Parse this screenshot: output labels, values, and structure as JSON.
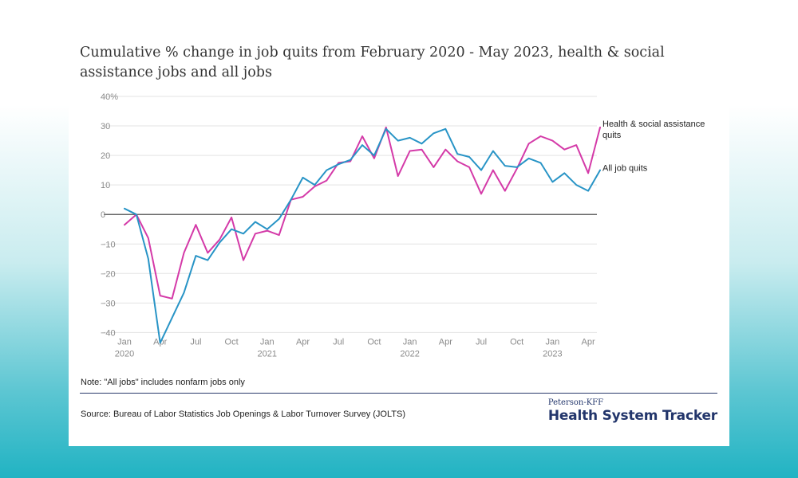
{
  "title": "Cumulative % change in job quits from February 2020 - May 2023, health & social assistance jobs and all jobs",
  "note": "Note: \"All jobs\" includes nonfarm jobs only",
  "source": "Source: Bureau of Labor Statistics Job Openings & Labor Turnover Survey (JOLTS)",
  "brand": {
    "small": "Peterson-KFF",
    "big": "Health System Tracker"
  },
  "colors": {
    "health": "#d43aa8",
    "all": "#2894c6",
    "zero": "#333333",
    "grid": "#e3e3e3",
    "tick": "#8a8a8a"
  },
  "chart_data": {
    "type": "line",
    "title": "Cumulative % change in job quits from February 2020 - May 2023, health & social assistance jobs and all jobs",
    "xlabel": "",
    "ylabel": "",
    "ylim": [
      -40,
      40
    ],
    "yticks": [
      -40,
      -30,
      -20,
      -10,
      0,
      10,
      20,
      30,
      40
    ],
    "ytick_labels": [
      "−40",
      "−30",
      "−20",
      "−10",
      "0",
      "10",
      "20",
      "30",
      "40%"
    ],
    "grid": true,
    "x": [
      "2020-01",
      "2020-02",
      "2020-03",
      "2020-04",
      "2020-05",
      "2020-06",
      "2020-07",
      "2020-08",
      "2020-09",
      "2020-10",
      "2020-11",
      "2020-12",
      "2021-01",
      "2021-02",
      "2021-03",
      "2021-04",
      "2021-05",
      "2021-06",
      "2021-07",
      "2021-08",
      "2021-09",
      "2021-10",
      "2021-11",
      "2021-12",
      "2022-01",
      "2022-02",
      "2022-03",
      "2022-04",
      "2022-05",
      "2022-06",
      "2022-07",
      "2022-08",
      "2022-09",
      "2022-10",
      "2022-11",
      "2022-12",
      "2023-01",
      "2023-02",
      "2023-03",
      "2023-04",
      "2023-05"
    ],
    "xticks": [
      {
        "index": 0,
        "label": "Jan",
        "sub": "2020"
      },
      {
        "index": 3,
        "label": "Apr",
        "sub": ""
      },
      {
        "index": 6,
        "label": "Jul",
        "sub": ""
      },
      {
        "index": 9,
        "label": "Oct",
        "sub": ""
      },
      {
        "index": 12,
        "label": "Jan",
        "sub": "2021"
      },
      {
        "index": 15,
        "label": "Apr",
        "sub": ""
      },
      {
        "index": 18,
        "label": "Jul",
        "sub": ""
      },
      {
        "index": 21,
        "label": "Oct",
        "sub": ""
      },
      {
        "index": 24,
        "label": "Jan",
        "sub": "2022"
      },
      {
        "index": 27,
        "label": "Apr",
        "sub": ""
      },
      {
        "index": 30,
        "label": "Jul",
        "sub": ""
      },
      {
        "index": 33,
        "label": "Oct",
        "sub": ""
      },
      {
        "index": 36,
        "label": "Jan",
        "sub": "2023"
      },
      {
        "index": 39,
        "label": "Apr",
        "sub": ""
      }
    ],
    "series": [
      {
        "name": "Health & social assistance quits",
        "label_lines": [
          "Health & social assistance",
          "quits"
        ],
        "color": "#d43aa8",
        "values": [
          -3.5,
          0,
          -8,
          -27.5,
          -28.5,
          -13,
          -3.5,
          -13,
          -8.5,
          -1,
          -15.5,
          -6.5,
          -5.5,
          -7,
          5,
          6,
          9.5,
          11.5,
          17.5,
          18,
          26.5,
          19,
          29.5,
          13,
          21.5,
          22,
          16,
          22,
          18,
          16,
          7,
          15,
          8,
          15.5,
          24,
          26.5,
          25,
          22,
          23.5,
          14,
          29.5
        ]
      },
      {
        "name": "All job quits",
        "label_lines": [
          "All job quits"
        ],
        "color": "#2894c6",
        "values": [
          2,
          0,
          -15,
          -43.5,
          -35,
          -26.5,
          -14,
          -15.5,
          -9.5,
          -5,
          -6.5,
          -2.5,
          -5,
          -1.5,
          5,
          12.5,
          10,
          15,
          17,
          18.5,
          23.5,
          20,
          29,
          25,
          26,
          24,
          27.5,
          29,
          20.5,
          19.5,
          15,
          21.5,
          16.5,
          16,
          19,
          17.5,
          11,
          14,
          10,
          8,
          15
        ]
      }
    ]
  }
}
